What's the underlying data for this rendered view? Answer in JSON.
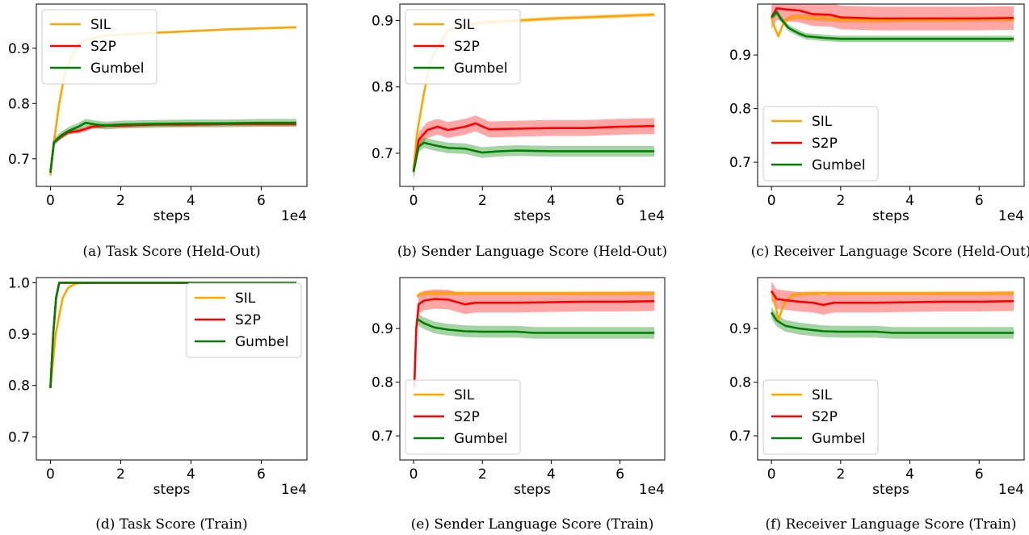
{
  "chart_data": [
    {
      "caption": "(a) Task Score (Held-Out)",
      "type": "line",
      "xlabel": "steps",
      "x_multiplier": "1e4",
      "xlim": [
        -0.4,
        7.3
      ],
      "ylim": [
        0.65,
        0.98
      ],
      "xticks": [
        0,
        2,
        4,
        6
      ],
      "xtick_labels": [
        "0",
        "2",
        "4",
        "6"
      ],
      "yticks": [
        0.7,
        0.8,
        0.9
      ],
      "ytick_labels": [
        "0.7",
        "0.8",
        "0.9"
      ],
      "legend": "upper-left",
      "series": [
        {
          "name": "SIL",
          "color": "#ffa500",
          "x": [
            0,
            0.1,
            0.25,
            0.4,
            0.6,
            0.8,
            1,
            1.5,
            2,
            3,
            4,
            5,
            6,
            7
          ],
          "y": [
            0.67,
            0.73,
            0.8,
            0.85,
            0.885,
            0.905,
            0.915,
            0.922,
            0.925,
            0.928,
            0.931,
            0.934,
            0.936,
            0.938
          ],
          "band": 0.002
        },
        {
          "name": "S2P",
          "color": "#ff0000",
          "x": [
            0,
            0.1,
            0.3,
            0.5,
            0.8,
            1.2,
            1.6,
            2,
            3,
            4,
            5,
            6,
            7
          ],
          "y": [
            0.675,
            0.73,
            0.74,
            0.748,
            0.75,
            0.758,
            0.76,
            0.76,
            0.762,
            0.762,
            0.763,
            0.763,
            0.763
          ],
          "band": 0.004
        },
        {
          "name": "Gumbel",
          "color": "#008000",
          "x": [
            0,
            0.1,
            0.3,
            0.5,
            0.8,
            1,
            1.3,
            1.6,
            2,
            3,
            4,
            5,
            6,
            7
          ],
          "y": [
            0.675,
            0.73,
            0.742,
            0.75,
            0.758,
            0.765,
            0.762,
            0.76,
            0.762,
            0.763,
            0.764,
            0.764,
            0.765,
            0.765
          ],
          "band": 0.007
        }
      ]
    },
    {
      "caption": "(b) Sender Language Score (Held-Out)",
      "type": "line",
      "xlabel": "steps",
      "x_multiplier": "1e4",
      "xlim": [
        -0.4,
        7.3
      ],
      "ylim": [
        0.65,
        0.925
      ],
      "xticks": [
        0,
        2,
        4,
        6
      ],
      "xtick_labels": [
        "0",
        "2",
        "4",
        "6"
      ],
      "yticks": [
        0.7,
        0.8,
        0.9
      ],
      "ytick_labels": [
        "0.7",
        "0.8",
        "0.9"
      ],
      "legend": "upper-left",
      "series": [
        {
          "name": "SIL",
          "color": "#ffa500",
          "x": [
            0,
            0.1,
            0.3,
            0.5,
            0.8,
            1,
            1.5,
            2,
            3,
            4,
            5,
            6,
            7
          ],
          "y": [
            0.675,
            0.73,
            0.79,
            0.84,
            0.87,
            0.885,
            0.893,
            0.897,
            0.9,
            0.903,
            0.905,
            0.907,
            0.909
          ],
          "band": 0.003
        },
        {
          "name": "S2P",
          "color": "#ff0000",
          "x": [
            0,
            0.15,
            0.4,
            0.7,
            1,
            1.5,
            1.8,
            2.2,
            3,
            4,
            5,
            6,
            7
          ],
          "y": [
            0.672,
            0.72,
            0.735,
            0.74,
            0.735,
            0.74,
            0.745,
            0.736,
            0.737,
            0.738,
            0.738,
            0.74,
            0.741
          ],
          "band": 0.012
        },
        {
          "name": "Gumbel",
          "color": "#008000",
          "x": [
            0,
            0.15,
            0.3,
            0.6,
            1,
            1.5,
            2,
            2.5,
            3,
            4,
            5,
            6,
            7
          ],
          "y": [
            0.672,
            0.71,
            0.716,
            0.712,
            0.708,
            0.707,
            0.701,
            0.703,
            0.704,
            0.703,
            0.703,
            0.703,
            0.703
          ],
          "band": 0.008
        }
      ]
    },
    {
      "caption": "(c) Receiver Language Score (Held-Out)",
      "type": "line",
      "xlabel": "steps",
      "x_multiplier": "1e4",
      "xlim": [
        -0.4,
        7.3
      ],
      "ylim": [
        0.655,
        0.995
      ],
      "xticks": [
        0,
        2,
        4,
        6
      ],
      "xtick_labels": [
        "0",
        "2",
        "4",
        "6"
      ],
      "yticks": [
        0.7,
        0.8,
        0.9
      ],
      "ytick_labels": [
        "0.7",
        "0.8",
        "0.9"
      ],
      "legend": "lower-left",
      "series": [
        {
          "name": "SIL",
          "color": "#ffa500",
          "x": [
            0,
            0.1,
            0.2,
            0.35,
            0.5,
            0.7,
            1,
            1.5,
            2,
            3,
            4,
            5,
            6,
            7
          ],
          "y": [
            0.97,
            0.95,
            0.935,
            0.96,
            0.968,
            0.972,
            0.97,
            0.968,
            0.966,
            0.965,
            0.966,
            0.966,
            0.967,
            0.967
          ],
          "band": 0.005
        },
        {
          "name": "S2P",
          "color": "#ff0000",
          "x": [
            0,
            0.15,
            0.4,
            0.8,
            1.2,
            1.7,
            2,
            3,
            4,
            5,
            6,
            7
          ],
          "y": [
            0.97,
            0.987,
            0.985,
            0.983,
            0.976,
            0.975,
            0.97,
            0.968,
            0.968,
            0.968,
            0.968,
            0.969
          ],
          "band": 0.022
        },
        {
          "name": "Gumbel",
          "color": "#008000",
          "x": [
            0,
            0.15,
            0.3,
            0.5,
            0.8,
            1,
            1.5,
            2,
            3,
            4,
            5,
            6,
            7
          ],
          "y": [
            0.97,
            0.98,
            0.965,
            0.95,
            0.94,
            0.935,
            0.932,
            0.93,
            0.93,
            0.93,
            0.93,
            0.93,
            0.93
          ],
          "band": 0.006
        }
      ]
    },
    {
      "caption": "(d) Task Score (Train)",
      "type": "line",
      "xlabel": "steps",
      "x_multiplier": "1e4",
      "xlim": [
        -0.4,
        7.3
      ],
      "ylim": [
        0.655,
        1.01
      ],
      "xticks": [
        0,
        2,
        4,
        6
      ],
      "xtick_labels": [
        "0",
        "2",
        "4",
        "6"
      ],
      "yticks": [
        0.7,
        0.8,
        0.9,
        1.0
      ],
      "ytick_labels": [
        "0.7",
        "0.8",
        "0.9",
        "1.0"
      ],
      "legend": "upper-right",
      "series": [
        {
          "name": "SIL",
          "color": "#ffa500",
          "x": [
            0,
            0.15,
            0.35,
            0.5,
            0.7,
            1,
            2,
            4,
            6,
            7
          ],
          "y": [
            0.795,
            0.9,
            0.97,
            0.99,
            0.998,
            1.0,
            1.0,
            1.0,
            1.0,
            1.0
          ],
          "band": 0
        },
        {
          "name": "S2P",
          "color": "#ff0000",
          "x": [
            0,
            0.08,
            0.16,
            0.25,
            1,
            2,
            4,
            6,
            7
          ],
          "y": [
            0.795,
            0.9,
            0.97,
            1.0,
            1.0,
            1.0,
            1.0,
            1.0,
            1.0
          ],
          "band": 0
        },
        {
          "name": "Gumbel",
          "color": "#008000",
          "x": [
            0,
            0.08,
            0.16,
            0.25,
            1,
            2,
            4,
            6,
            7
          ],
          "y": [
            0.795,
            0.9,
            0.97,
            1.0,
            1.0,
            1.0,
            1.0,
            1.0,
            1.0
          ],
          "band": 0
        }
      ]
    },
    {
      "caption": "(e) Sender Language Score (Train)",
      "type": "line",
      "xlabel": "steps",
      "x_multiplier": "1e4",
      "xlim": [
        -0.4,
        7.3
      ],
      "ylim": [
        0.655,
        0.995
      ],
      "xticks": [
        0,
        2,
        4,
        6
      ],
      "xtick_labels": [
        "0",
        "2",
        "4",
        "6"
      ],
      "yticks": [
        0.7,
        0.8,
        0.9
      ],
      "ytick_labels": [
        "0.7",
        "0.8",
        "0.9"
      ],
      "legend": "lower-left",
      "series": [
        {
          "name": "SIL",
          "color": "#ffa500",
          "x": [
            0.1,
            0.2,
            0.4,
            0.8,
            1.5,
            2,
            3,
            4,
            5,
            6,
            7
          ],
          "y": [
            0.96,
            0.965,
            0.966,
            0.966,
            0.966,
            0.966,
            0.966,
            0.966,
            0.966,
            0.966,
            0.966
          ],
          "band": 0.004
        },
        {
          "name": "S2P",
          "color": "#ff0000",
          "x": [
            0.02,
            0.08,
            0.15,
            0.3,
            0.6,
            1,
            1.5,
            1.8,
            2,
            3,
            4,
            5,
            6,
            7
          ],
          "y": [
            0.79,
            0.9,
            0.945,
            0.952,
            0.955,
            0.954,
            0.945,
            0.948,
            0.948,
            0.948,
            0.949,
            0.95,
            0.95,
            0.951
          ],
          "band": 0.018
        },
        {
          "name": "Gumbel",
          "color": "#008000",
          "x": [
            0.1,
            0.3,
            0.6,
            1,
            1.5,
            2,
            3,
            3.5,
            4,
            5,
            6,
            7
          ],
          "y": [
            0.918,
            0.91,
            0.902,
            0.898,
            0.895,
            0.894,
            0.894,
            0.892,
            0.892,
            0.892,
            0.892,
            0.892
          ],
          "band": 0.011
        }
      ]
    },
    {
      "caption": "(f) Receiver Language Score (Train)",
      "type": "line",
      "xlabel": "steps",
      "x_multiplier": "1e4",
      "xlim": [
        -0.4,
        7.3
      ],
      "ylim": [
        0.655,
        0.995
      ],
      "xticks": [
        0,
        2,
        4,
        6
      ],
      "xtick_labels": [
        "0",
        "2",
        "4",
        "6"
      ],
      "yticks": [
        0.7,
        0.8,
        0.9
      ],
      "ytick_labels": [
        "0.7",
        "0.8",
        "0.9"
      ],
      "legend": "lower-left",
      "series": [
        {
          "name": "SIL",
          "color": "#ffa500",
          "x": [
            0,
            0.1,
            0.2,
            0.35,
            0.6,
            1,
            2,
            3,
            4,
            5,
            6,
            7
          ],
          "y": [
            0.97,
            0.95,
            0.915,
            0.945,
            0.962,
            0.966,
            0.966,
            0.966,
            0.966,
            0.966,
            0.966,
            0.966
          ],
          "band": 0.004
        },
        {
          "name": "S2P",
          "color": "#ff0000",
          "x": [
            0,
            0.15,
            0.4,
            0.8,
            1.2,
            1.5,
            1.8,
            2,
            3,
            4,
            5,
            6,
            7
          ],
          "y": [
            0.97,
            0.955,
            0.953,
            0.95,
            0.948,
            0.944,
            0.948,
            0.948,
            0.948,
            0.949,
            0.95,
            0.95,
            0.951
          ],
          "band": 0.018
        },
        {
          "name": "Gumbel",
          "color": "#008000",
          "x": [
            0,
            0.15,
            0.4,
            0.8,
            1.2,
            1.5,
            2,
            3,
            3.5,
            4,
            5,
            6,
            7
          ],
          "y": [
            0.93,
            0.915,
            0.905,
            0.9,
            0.897,
            0.895,
            0.894,
            0.894,
            0.892,
            0.892,
            0.892,
            0.892,
            0.892
          ],
          "band": 0.011
        }
      ]
    }
  ]
}
